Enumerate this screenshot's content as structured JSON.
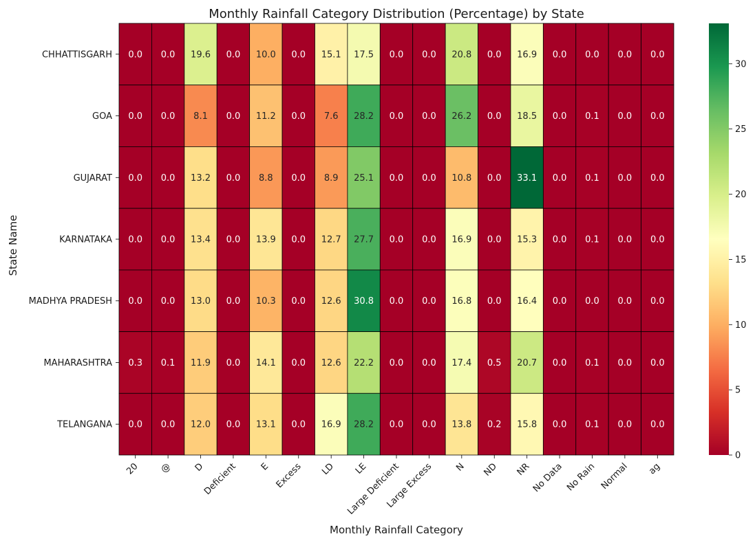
{
  "chart_data": {
    "type": "heatmap",
    "title": "Monthly Rainfall Category Distribution (Percentage) by State",
    "xlabel": "Monthly Rainfall Category",
    "ylabel": "State Name",
    "x_categories": [
      "20",
      "@",
      "D",
      "Deficient",
      "E",
      "Excess",
      "LD",
      "LE",
      "Large Deficient",
      "Large Excess",
      "N",
      "ND",
      "NR",
      "No Data",
      "No Rain",
      "Normal",
      "ag"
    ],
    "y_categories": [
      "CHHATTISGARH",
      "GOA",
      "GUJARAT",
      "KARNATAKA",
      "MADHYA PRADESH",
      "MAHARASHTRA",
      "TELANGANA"
    ],
    "values": [
      [
        0.0,
        0.0,
        19.6,
        0.0,
        10.0,
        0.0,
        15.1,
        17.5,
        0.0,
        0.0,
        20.8,
        0.0,
        16.9,
        0.0,
        0.0,
        0.0,
        0.0
      ],
      [
        0.0,
        0.0,
        8.1,
        0.0,
        11.2,
        0.0,
        7.6,
        28.2,
        0.0,
        0.0,
        26.2,
        0.0,
        18.5,
        0.0,
        0.1,
        0.0,
        0.0
      ],
      [
        0.0,
        0.0,
        13.2,
        0.0,
        8.8,
        0.0,
        8.9,
        25.1,
        0.0,
        0.0,
        10.8,
        0.0,
        33.1,
        0.0,
        0.1,
        0.0,
        0.0
      ],
      [
        0.0,
        0.0,
        13.4,
        0.0,
        13.9,
        0.0,
        12.7,
        27.7,
        0.0,
        0.0,
        16.9,
        0.0,
        15.3,
        0.0,
        0.1,
        0.0,
        0.0
      ],
      [
        0.0,
        0.0,
        13.0,
        0.0,
        10.3,
        0.0,
        12.6,
        30.8,
        0.0,
        0.0,
        16.8,
        0.0,
        16.4,
        0.0,
        0.0,
        0.0,
        0.0
      ],
      [
        0.3,
        0.1,
        11.9,
        0.0,
        14.1,
        0.0,
        12.6,
        22.2,
        0.0,
        0.0,
        17.4,
        0.5,
        20.7,
        0.0,
        0.1,
        0.0,
        0.0
      ],
      [
        0.0,
        0.0,
        12.0,
        0.0,
        13.1,
        0.0,
        16.9,
        28.2,
        0.0,
        0.0,
        13.8,
        0.2,
        15.8,
        0.0,
        0.1,
        0.0,
        0.0
      ]
    ],
    "value_format": "0.0",
    "colormap": "RdYlGn",
    "colorbar": {
      "range": [
        0,
        33.1
      ],
      "ticks": [
        0,
        5,
        10,
        15,
        20,
        25,
        30
      ],
      "tick_labels": [
        "0",
        "5",
        "10",
        "15",
        "20",
        "25",
        "30"
      ]
    },
    "cell_border_color": "#000000"
  }
}
